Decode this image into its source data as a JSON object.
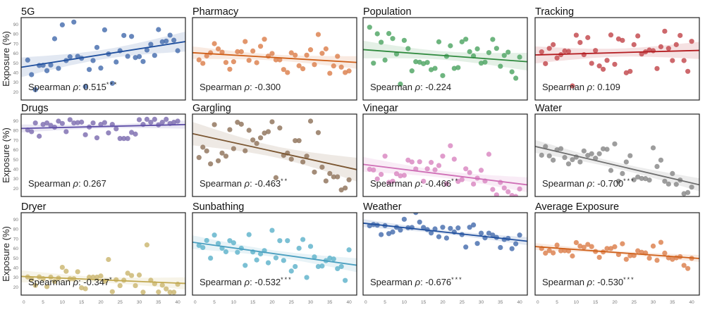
{
  "chart_data": {
    "type": "scatter",
    "layout": "3x4 grid",
    "ylabel": "Exposure (%)",
    "xlim": [
      -0.7,
      42
    ],
    "ylim": [
      11.9,
      97.3
    ],
    "xticks": [
      0,
      5,
      10,
      15,
      20,
      25,
      30,
      35,
      40
    ],
    "yticks": [
      20,
      30,
      40,
      50,
      60,
      70,
      80,
      90
    ],
    "grid": false,
    "fit": "linear regression with confidence band",
    "stat_prefix": "Spearman",
    "stat_symbol": "ρ",
    "x": [
      1,
      2,
      3,
      4,
      5,
      6,
      7,
      8,
      9,
      10,
      11,
      12,
      13,
      14,
      15,
      16,
      17,
      18,
      19,
      20,
      21,
      22,
      23,
      24,
      25,
      26,
      27,
      28,
      29,
      30,
      31,
      32,
      33,
      34,
      35,
      36,
      37,
      38,
      39,
      40
    ],
    "panels": [
      {
        "title": "5G",
        "color": "#4c72b0",
        "line_color": "#1f4f9e",
        "rho": "0.515",
        "stars": "***",
        "y": [
          53.3,
          38.2,
          22.6,
          47.7,
          47.9,
          42.3,
          48.2,
          75.4,
          44.7,
          89.8,
          52.8,
          56.7,
          92.7,
          57.2,
          55.2,
          25.8,
          43.5,
          52.8,
          66.4,
          45.0,
          84.6,
          59.6,
          29.2,
          51.3,
          63.0,
          78.8,
          57.2,
          77.8,
          55.9,
          56.9,
          51.8,
          63.7,
          69.6,
          58.1,
          84.9,
          72.2,
          73.0,
          79.1,
          73.9,
          63.0
        ]
      },
      {
        "title": "Pharmacy",
        "color": "#dd8452",
        "line_color": "#cf5f18",
        "rho": "-0.300",
        "stars": "",
        "y": [
          53.5,
          49.9,
          57.6,
          60.8,
          70.3,
          64.9,
          61.5,
          50.8,
          43.8,
          51.6,
          62.0,
          62.0,
          72.5,
          53.0,
          62.7,
          50.6,
          67.6,
          74.9,
          57.4,
          60.1,
          53.5,
          53.5,
          43.5,
          40.4,
          60.8,
          58.4,
          47.4,
          44.3,
          58.4,
          64.0,
          48.6,
          79.8,
          60.3,
          64.9,
          39.6,
          47.2,
          57.2,
          46.0,
          40.4,
          42.0
        ]
      },
      {
        "title": "Population",
        "color": "#55a868",
        "line_color": "#2f8a3e",
        "rho": "-0.224",
        "stars": "",
        "y": [
          87.3,
          50.1,
          80.5,
          71.8,
          53.3,
          80.8,
          75.6,
          59.6,
          28.4,
          73.7,
          65.2,
          42.1,
          51.6,
          51.1,
          49.6,
          50.8,
          43.3,
          44.7,
          72.2,
          37.2,
          57.2,
          68.1,
          44.7,
          45.5,
          72.2,
          74.9,
          62.0,
          57.6,
          64.9,
          50.1,
          51.1,
          61.0,
          74.7,
          65.4,
          46.9,
          58.1,
          61.5,
          41.1,
          34.5,
          56.4
        ]
      },
      {
        "title": "Tracking",
        "color": "#c44e52",
        "line_color": "#b31b1f",
        "rho": "0.109",
        "stars": "",
        "y": [
          61.8,
          49.6,
          65.4,
          69.3,
          55.5,
          58.9,
          62.7,
          62.3,
          26.5,
          79.1,
          71.5,
          58.9,
          76.6,
          49.9,
          63.2,
          47.2,
          43.8,
          53.0,
          79.3,
          48.9,
          75.2,
          73.7,
          40.1,
          41.6,
          69.3,
          78.3,
          59.6,
          61.8,
          63.7,
          63.0,
          44.5,
          67.1,
          83.2,
          65.4,
          52.8,
          69.3,
          78.8,
          52.8,
          41.6,
          72.7
        ]
      },
      {
        "title": "Drugs",
        "color": "#8172b3",
        "line_color": "#5f4fa8",
        "rho": "0.267",
        "stars": "",
        "y": [
          80.8,
          79.1,
          88.1,
          74.4,
          86.6,
          88.1,
          85.6,
          83.7,
          90.0,
          87.6,
          79.1,
          91.5,
          88.1,
          88.5,
          89.0,
          75.9,
          83.9,
          88.1,
          72.7,
          86.6,
          88.5,
          77.8,
          86.6,
          82.0,
          72.0,
          72.0,
          72.0,
          78.3,
          76.6,
          91.5,
          86.6,
          91.9,
          88.8,
          91.9,
          86.1,
          88.8,
          91.9,
          87.6,
          88.8,
          90.0
        ]
      },
      {
        "title": "Gargling",
        "color": "#937860",
        "line_color": "#7a5530",
        "rho": "-0.463",
        "stars": "**",
        "y": [
          52.3,
          63.0,
          59.1,
          45.7,
          86.4,
          48.9,
          56.9,
          53.7,
          81.2,
          61.5,
          88.8,
          86.8,
          59.3,
          80.5,
          70.5,
          66.9,
          72.7,
          77.6,
          79.1,
          89.3,
          31.4,
          82.9,
          54.5,
          56.9,
          50.6,
          69.8,
          69.8,
          47.7,
          53.7,
          90.0,
          37.2,
          78.1,
          42.3,
          28.0,
          35.7,
          32.3,
          32.3,
          18.7,
          20.7,
          29.2
        ]
      },
      {
        "title": "Vinegar",
        "color": "#da8bc3",
        "line_color": "#cf6fb6",
        "rho": "-0.466",
        "stars": "**",
        "y": [
          40.1,
          39.4,
          30.1,
          34.8,
          53.7,
          26.5,
          27.7,
          35.5,
          33.3,
          33.8,
          49.6,
          47.7,
          40.4,
          47.9,
          27.7,
          40.6,
          47.2,
          39.6,
          44.0,
          53.7,
          25.0,
          64.5,
          50.6,
          27.5,
          29.4,
          40.6,
          36.7,
          24.8,
          30.9,
          39.1,
          28.0,
          55.7,
          19.2,
          13.6,
          26.5,
          20.7,
          16.8,
          12.9,
          11.9,
          19.7
        ]
      },
      {
        "title": "Water",
        "color": "#8c8c8c",
        "line_color": "#6e6e6e",
        "rho": "-0.700",
        "stars": "***",
        "y": [
          54.7,
          63.7,
          54.0,
          49.6,
          60.3,
          61.5,
          52.3,
          45.7,
          50.1,
          52.8,
          47.7,
          59.1,
          54.5,
          56.2,
          51.6,
          56.2,
          61.3,
          60.8,
          38.9,
          66.4,
          27.7,
          35.7,
          47.7,
          54.2,
          29.2,
          32.1,
          30.6,
          30.4,
          28.9,
          62.3,
          43.0,
          49.6,
          27.7,
          24.8,
          35.7,
          24.5,
          28.9,
          14.8,
          16.0,
          21.6
        ]
      },
      {
        "title": "Dryer",
        "color": "#ccb974",
        "line_color": "#c2a950",
        "rho": "-0.347",
        "stars": "*",
        "y": [
          30.7,
          28.5,
          22.0,
          30.7,
          29.0,
          20.7,
          30.5,
          26.1,
          29.5,
          40.7,
          36.6,
          28.8,
          28.8,
          36.1,
          19.5,
          18.5,
          30.5,
          30.5,
          30.5,
          31.7,
          26.3,
          48.8,
          15.4,
          27.8,
          21.7,
          27.3,
          34.6,
          32.2,
          21.7,
          32.7,
          14.9,
          63.9,
          27.3,
          23.7,
          15.1,
          22.2,
          18.3,
          14.9,
          14.9,
          23.2
        ]
      },
      {
        "title": "Sunbathing",
        "color": "#64b5cd",
        "line_color": "#4a9fc0",
        "rho": "-0.532",
        "stars": "***",
        "y": [
          63.4,
          61.2,
          68.5,
          50.2,
          74.1,
          65.4,
          60.5,
          56.8,
          68.3,
          66.1,
          56.3,
          60.5,
          42.7,
          74.6,
          56.6,
          48.3,
          54.6,
          58.0,
          45.4,
          79.0,
          50.5,
          68.3,
          47.8,
          68.3,
          36.8,
          41.5,
          60.5,
          69.5,
          30.2,
          62.4,
          51.5,
          41.5,
          42.0,
          47.6,
          50.2,
          49.3,
          39.3,
          41.5,
          27.1,
          58.8
        ]
      },
      {
        "title": "Weather",
        "color": "#4c72b0",
        "line_color": "#1f4f9e",
        "rho": "-0.676",
        "stars": "***",
        "y": [
          83.7,
          85.1,
          84.4,
          74.6,
          83.9,
          75.6,
          77.3,
          82.2,
          79.3,
          90.5,
          81.7,
          82.0,
          97.5,
          87.6,
          82.0,
          79.8,
          76.3,
          80.5,
          72.4,
          82.2,
          71.0,
          81.0,
          77.3,
          81.5,
          74.6,
          61.7,
          82.2,
          84.6,
          65.4,
          76.1,
          71.2,
          76.1,
          74.1,
          71.7,
          61.2,
          69.5,
          70.7,
          60.0,
          65.1,
          74.1
        ]
      },
      {
        "title": "Average Exposure",
        "color": "#dd8452",
        "line_color": "#cf5f18",
        "rho": "-0.530",
        "stars": "***",
        "y": [
          60.2,
          55.4,
          58.0,
          55.6,
          63.7,
          57.8,
          58.0,
          57.6,
          52.4,
          66.3,
          62.7,
          61.5,
          64.4,
          62.2,
          57.1,
          51.0,
          56.6,
          60.2,
          60.2,
          62.0,
          53.9,
          65.1,
          49.0,
          52.7,
          52.9,
          57.8,
          56.3,
          55.6,
          50.2,
          62.7,
          48.0,
          66.6,
          55.4,
          50.5,
          49.0,
          50.5,
          51.7,
          42.7,
          39.5,
          50.0
        ]
      }
    ]
  }
}
